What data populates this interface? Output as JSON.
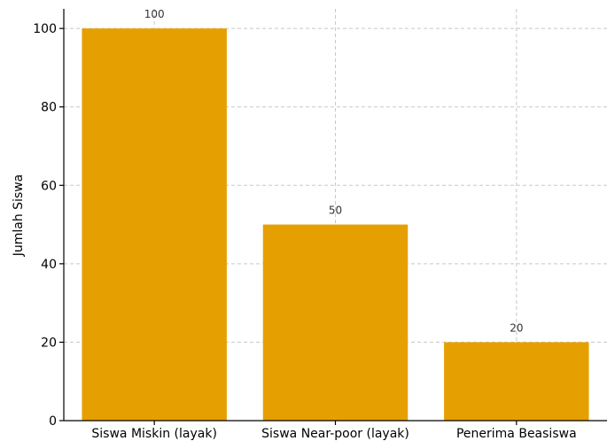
{
  "chart_data": {
    "type": "bar",
    "categories": [
      "Siswa Miskin (layak)",
      "Siswa Near-poor (layak)",
      "Penerima Beasiswa"
    ],
    "values": [
      100,
      50,
      20
    ],
    "data_labels": [
      "100",
      "50",
      "20"
    ],
    "title": "",
    "xlabel": "",
    "ylabel": "Jumlah Siswa",
    "ylim": [
      0,
      105
    ],
    "yticks": [
      0,
      20,
      40,
      60,
      80,
      100
    ],
    "grid": true,
    "bar_color": "#E69F00"
  }
}
